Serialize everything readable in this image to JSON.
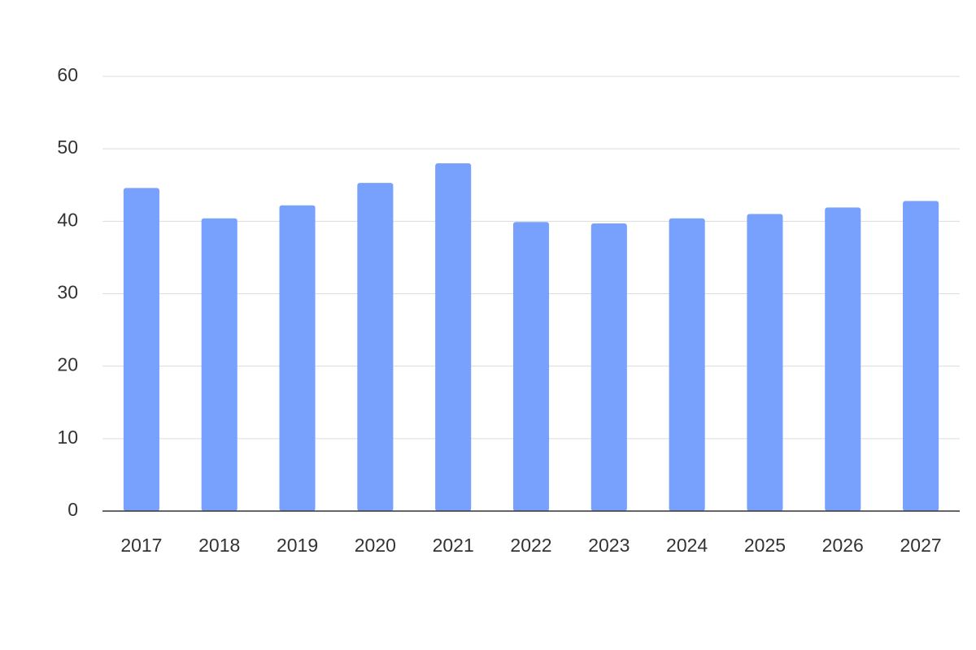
{
  "chart_data": {
    "type": "bar",
    "categories": [
      "2017",
      "2018",
      "2019",
      "2020",
      "2021",
      "2022",
      "2023",
      "2024",
      "2025",
      "2026",
      "2027"
    ],
    "values": [
      44.6,
      40.4,
      42.2,
      45.3,
      48.0,
      39.9,
      39.7,
      40.4,
      41.0,
      41.9,
      42.8
    ],
    "color": "#77a1fc",
    "ylim": [
      0,
      60
    ],
    "yticks": [
      0,
      10,
      20,
      30,
      40,
      50,
      60
    ],
    "grid": true
  }
}
